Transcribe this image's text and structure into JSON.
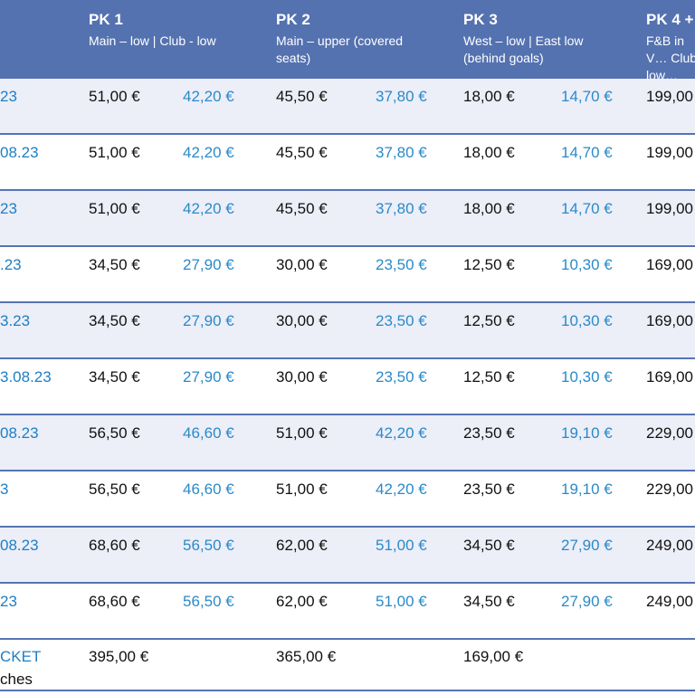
{
  "header": {
    "columns": [
      {
        "title": "PK 1",
        "subtitle": "Main – low | Club  - low"
      },
      {
        "title": "PK 2",
        "subtitle": "Main – upper (covered seats)"
      },
      {
        "title": "PK 3",
        "subtitle": "West – low | East low (behind goals)"
      },
      {
        "title": "PK 4 +",
        "subtitle": "F&B in V… Club low…"
      }
    ]
  },
  "rows": [
    {
      "date": "23",
      "pk1": "51,00 €",
      "pk1_red": "42,20 €",
      "pk2": "45,50 €",
      "pk2_red": "37,80 €",
      "pk3": "18,00 €",
      "pk3_red": "14,70 €",
      "pk4": "199,00"
    },
    {
      "date": "08.23",
      "pk1": "51,00 €",
      "pk1_red": "42,20 €",
      "pk2": "45,50 €",
      "pk2_red": "37,80 €",
      "pk3": "18,00 €",
      "pk3_red": "14,70 €",
      "pk4": "199,00"
    },
    {
      "date": "23",
      "pk1": "51,00 €",
      "pk1_red": "42,20 €",
      "pk2": "45,50 €",
      "pk2_red": "37,80 €",
      "pk3": "18,00 €",
      "pk3_red": "14,70 €",
      "pk4": "199,00"
    },
    {
      "date": ".23",
      "pk1": "34,50 €",
      "pk1_red": "27,90 €",
      "pk2": "30,00 €",
      "pk2_red": "23,50 €",
      "pk3": "12,50 €",
      "pk3_red": "10,30 €",
      "pk4": "169,00"
    },
    {
      "date": "3.23",
      "pk1": "34,50 €",
      "pk1_red": "27,90 €",
      "pk2": "30,00 €",
      "pk2_red": "23,50 €",
      "pk3": "12,50 €",
      "pk3_red": "10,30 €",
      "pk4": "169,00"
    },
    {
      "date": "3.08.23",
      "pk1": "34,50 €",
      "pk1_red": "27,90 €",
      "pk2": "30,00 €",
      "pk2_red": "23,50 €",
      "pk3": "12,50 €",
      "pk3_red": "10,30 €",
      "pk4": "169,00"
    },
    {
      "date": "08.23",
      "pk1": "56,50 €",
      "pk1_red": "46,60 €",
      "pk2": "51,00 €",
      "pk2_red": "42,20 €",
      "pk3": "23,50 €",
      "pk3_red": "19,10 €",
      "pk4": "229,00"
    },
    {
      "date": "3",
      "pk1": "56,50 €",
      "pk1_red": "46,60 €",
      "pk2": "51,00 €",
      "pk2_red": "42,20 €",
      "pk3": "23,50 €",
      "pk3_red": "19,10 €",
      "pk4": "229,00"
    },
    {
      "date": "08.23",
      "pk1": "68,60 €",
      "pk1_red": "56,50 €",
      "pk2": "62,00 €",
      "pk2_red": "51,00 €",
      "pk3": "34,50 €",
      "pk3_red": "27,90 €",
      "pk4": "249,00"
    },
    {
      "date": "23",
      "pk1": "68,60 €",
      "pk1_red": "56,50 €",
      "pk2": "62,00 €",
      "pk2_red": "51,00 €",
      "pk3": "34,50 €",
      "pk3_red": "27,90 €",
      "pk4": "249,00"
    }
  ],
  "season": {
    "label": "CKET",
    "note": "ches",
    "pk1": "395,00 €",
    "pk2": "365,00 €",
    "pk3": "169,00 €"
  },
  "colors": {
    "header_bg": "#5572b0",
    "price_blue": "#2a8ac8",
    "row_shade": "#eceef8",
    "divider": "#5574b3"
  }
}
